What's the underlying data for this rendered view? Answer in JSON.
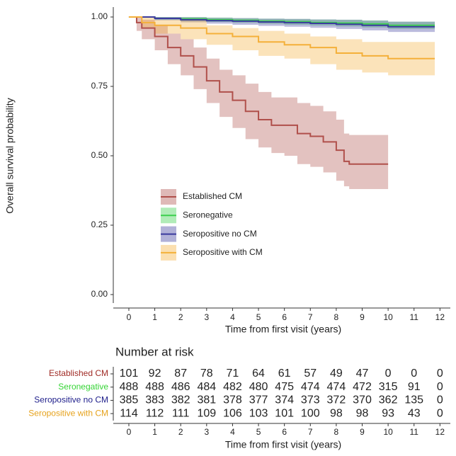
{
  "chart_data": [
    {
      "type": "step",
      "ylabel": "Overall survival probability",
      "xlabel": "Time from first visit (years)",
      "xlim": [
        -0.6,
        12.4
      ],
      "ylim": [
        0,
        1
      ],
      "xticks": [
        0,
        1,
        2,
        3,
        4,
        5,
        6,
        7,
        8,
        9,
        10,
        11,
        12
      ],
      "yticks": [
        {
          "value": 0,
          "label": "0.00"
        },
        {
          "value": 0.25,
          "label": "0.25"
        },
        {
          "value": 0.5,
          "label": "0.50"
        },
        {
          "value": 0.75,
          "label": "0.75"
        },
        {
          "value": 1,
          "label": "1.00"
        }
      ],
      "series": [
        {
          "name": "Established CM",
          "color": "#b0504b",
          "x": [
            0,
            0.3,
            0.5,
            1,
            1.5,
            2,
            2.5,
            3,
            3.5,
            4,
            4.5,
            5,
            5.5,
            6,
            6.5,
            7,
            7.5,
            8,
            8.3,
            8.5,
            10
          ],
          "values": [
            1,
            0.98,
            0.96,
            0.93,
            0.89,
            0.86,
            0.82,
            0.77,
            0.73,
            0.7,
            0.66,
            0.63,
            0.61,
            0.61,
            0.58,
            0.57,
            0.55,
            0.52,
            0.48,
            0.47,
            0.47
          ],
          "lower": [
            1,
            0.95,
            0.92,
            0.88,
            0.83,
            0.79,
            0.74,
            0.69,
            0.64,
            0.6,
            0.56,
            0.53,
            0.51,
            0.5,
            0.47,
            0.46,
            0.44,
            0.41,
            0.39,
            0.38,
            0.38
          ],
          "upper": [
            1,
            1,
            0.99,
            0.97,
            0.94,
            0.92,
            0.89,
            0.85,
            0.81,
            0.79,
            0.76,
            0.73,
            0.71,
            0.71,
            0.69,
            0.68,
            0.66,
            0.63,
            0.58,
            0.575,
            0.575
          ]
        },
        {
          "name": "Seronegative",
          "color": "#3ccf4e",
          "x": [
            0,
            1,
            2,
            3,
            4,
            5,
            6,
            7,
            8,
            9,
            10,
            11.8
          ],
          "values": [
            1,
            0.995,
            0.993,
            0.99,
            0.988,
            0.985,
            0.983,
            0.98,
            0.978,
            0.975,
            0.97,
            0.97
          ],
          "lower": [
            1,
            0.99,
            0.985,
            0.982,
            0.979,
            0.975,
            0.972,
            0.969,
            0.966,
            0.962,
            0.957,
            0.957
          ],
          "upper": [
            1,
            1,
            1,
            0.998,
            0.996,
            0.994,
            0.993,
            0.991,
            0.99,
            0.988,
            0.983,
            0.983
          ]
        },
        {
          "name": "Seropositive no CM",
          "color": "#3b3b9e",
          "x": [
            0,
            1,
            2,
            3,
            4,
            5,
            6,
            7,
            8,
            9,
            10,
            11.8
          ],
          "values": [
            1,
            0.995,
            0.99,
            0.987,
            0.985,
            0.982,
            0.98,
            0.977,
            0.974,
            0.97,
            0.965,
            0.965
          ],
          "lower": [
            1,
            0.988,
            0.981,
            0.976,
            0.972,
            0.968,
            0.965,
            0.961,
            0.957,
            0.952,
            0.946,
            0.946
          ],
          "upper": [
            1,
            1,
            0.999,
            0.997,
            0.996,
            0.994,
            0.993,
            0.991,
            0.99,
            0.987,
            0.983,
            0.983
          ]
        },
        {
          "name": "Seropositive with CM",
          "color": "#f4b03a",
          "x": [
            0,
            0.5,
            1,
            2,
            3,
            4,
            5,
            6,
            7,
            8,
            9,
            10,
            11.8
          ],
          "values": [
            1,
            0.98,
            0.97,
            0.96,
            0.94,
            0.93,
            0.91,
            0.9,
            0.89,
            0.87,
            0.86,
            0.85,
            0.85
          ],
          "lower": [
            1,
            0.96,
            0.94,
            0.92,
            0.9,
            0.88,
            0.86,
            0.85,
            0.83,
            0.81,
            0.8,
            0.79,
            0.79
          ],
          "upper": [
            1,
            1,
            0.99,
            0.99,
            0.97,
            0.96,
            0.95,
            0.94,
            0.93,
            0.92,
            0.91,
            0.91,
            0.91
          ]
        }
      ]
    },
    {
      "type": "risk-table",
      "title": "Number at risk",
      "xlabel": "Time from first visit (years)",
      "xlim": [
        -0.6,
        12.4
      ],
      "xticks": [
        0,
        1,
        2,
        3,
        4,
        5,
        6,
        7,
        8,
        9,
        10,
        11,
        12
      ],
      "rows": [
        {
          "name": "Established CM",
          "color": "#a02c26",
          "values": [
            101,
            92,
            87,
            78,
            71,
            64,
            61,
            57,
            49,
            47,
            0,
            0,
            0
          ]
        },
        {
          "name": "Seronegative",
          "color": "#35d435",
          "values": [
            488,
            488,
            486,
            484,
            482,
            480,
            475,
            474,
            474,
            472,
            315,
            91,
            0
          ]
        },
        {
          "name": "Seropositive no CM",
          "color": "#1d1d8a",
          "values": [
            385,
            383,
            382,
            381,
            378,
            377,
            374,
            373,
            372,
            370,
            362,
            135,
            0
          ]
        },
        {
          "name": "Seropositive with CM",
          "color": "#e6a21c",
          "values": [
            114,
            112,
            111,
            109,
            106,
            103,
            101,
            100,
            98,
            98,
            93,
            43,
            0
          ]
        }
      ]
    }
  ]
}
